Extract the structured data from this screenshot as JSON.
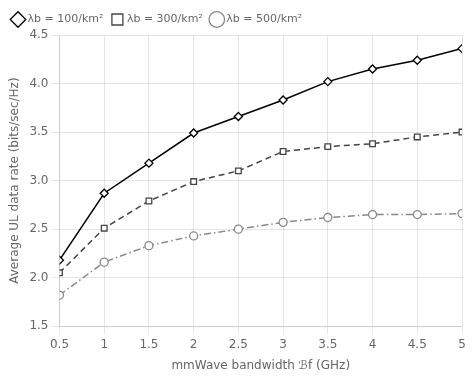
{
  "chart_data": {
    "type": "line",
    "x": [
      0.5,
      1.0,
      1.5,
      2.0,
      2.5,
      3.0,
      3.5,
      4.0,
      4.5,
      5.0
    ],
    "series": [
      {
        "name": "λb = 100/km²",
        "color": "#000000",
        "marker": "diamond",
        "line_style": "solid",
        "values": [
          2.18,
          2.87,
          3.18,
          3.49,
          3.66,
          3.83,
          4.02,
          4.15,
          4.24,
          4.36
        ]
      },
      {
        "name": "λb = 300/km²",
        "color": "#444444",
        "marker": "square",
        "line_style": "dashed",
        "values": [
          2.05,
          2.51,
          2.79,
          2.99,
          3.1,
          3.3,
          3.35,
          3.38,
          3.45,
          3.5
        ]
      },
      {
        "name": "λb = 500/km²",
        "color": "#888888",
        "marker": "circle",
        "line_style": "dashdot",
        "values": [
          1.82,
          2.16,
          2.33,
          2.43,
          2.5,
          2.57,
          2.62,
          2.65,
          2.65,
          2.66
        ]
      }
    ],
    "x_label": "mmWave bandwidth ℬf (GHz)",
    "y_label": "Average UL data rate (bits/sec/Hz)",
    "xlim": [
      0.5,
      5.0
    ],
    "ylim": [
      1.5,
      4.5
    ],
    "xticks": [
      0.5,
      1,
      1.5,
      2,
      2.5,
      3,
      3.5,
      4,
      4.5,
      5
    ],
    "yticks": [
      1.5,
      {
        "value": 2,
        "label": "2.0"
      },
      2.5,
      {
        "value": 3,
        "label": "3.0"
      },
      3.5,
      {
        "value": 4,
        "label": "4.0"
      },
      4.5
    ],
    "grid": true,
    "legend": "upper left"
  }
}
